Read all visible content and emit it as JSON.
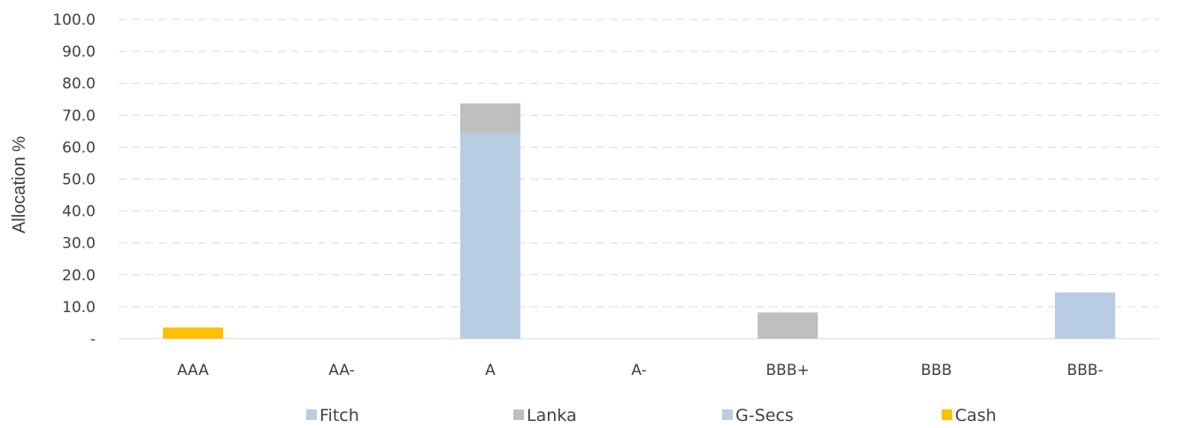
{
  "colors": {
    "fitch": "#b8cce4",
    "lanka": "#bfbfbf",
    "gsecs": "#b8cce4",
    "cash": "#ffc000"
  },
  "chart_data": {
    "type": "bar",
    "stacked": true,
    "categories": [
      "AAA",
      "AA-",
      "A",
      "A-",
      "BBB+",
      "BBB",
      "BBB-"
    ],
    "series": [
      {
        "name": "Fitch",
        "color": "#b8cce4",
        "values": [
          0,
          0,
          64.3,
          0,
          0,
          0,
          14.5
        ]
      },
      {
        "name": "Lanka",
        "color": "#bfbfbf",
        "values": [
          0,
          0,
          9.4,
          0,
          8.2,
          0,
          0
        ]
      },
      {
        "name": "G-Secs",
        "color": "#b8cce4",
        "values": [
          0,
          0,
          0,
          0,
          0,
          0,
          0
        ]
      },
      {
        "name": "Cash",
        "color": "#ffc000",
        "values": [
          3.5,
          0,
          0,
          0,
          0,
          0,
          0
        ]
      }
    ],
    "ylabel": "Allocation %",
    "xlabel": "",
    "ylim": [
      0,
      100
    ],
    "yticks": [
      0,
      10,
      20,
      30,
      40,
      50,
      60,
      70,
      80,
      90,
      100
    ],
    "ytick_labels": [
      "-",
      "10.0",
      "20.0",
      "30.0",
      "40.0",
      "50.0",
      "60.0",
      "70.0",
      "80.0",
      "90.0",
      "100.0"
    ],
    "grid": true,
    "legend_position": "bottom"
  }
}
